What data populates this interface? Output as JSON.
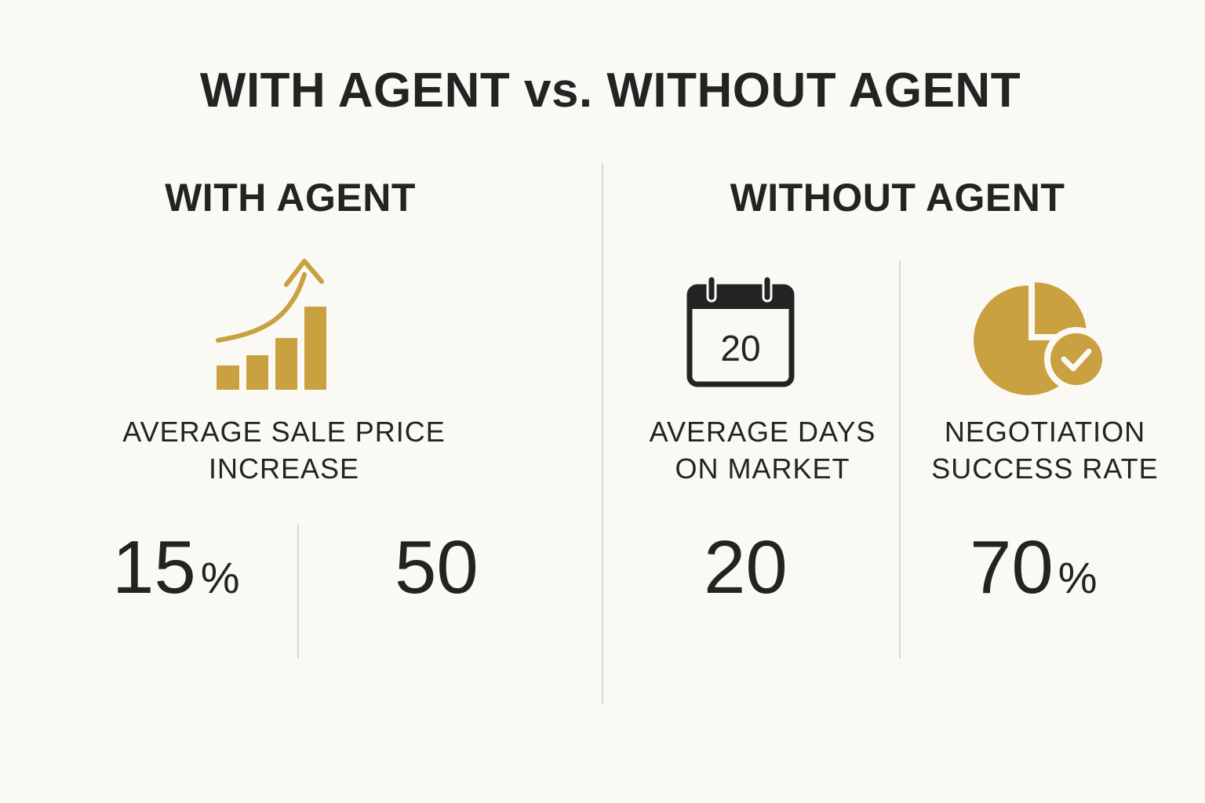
{
  "title": "WITH AGENT vs. WITHOUT AGENT",
  "with_agent": {
    "heading": "WITH AGENT",
    "metric": {
      "label_line1": "AVERAGE SALE PRICE",
      "label_line2": "INCREASE",
      "value1_number": "15",
      "value1_unit": "%",
      "value2_number": "50",
      "icon": "bar-growth-arrow-icon"
    }
  },
  "without_agent": {
    "heading": "WITHOUT AGENT",
    "metrics": [
      {
        "label_line1": "AVERAGE DAYS",
        "label_line2": "ON MARKET",
        "value_number": "20",
        "value_unit": "",
        "icon": "calendar-icon",
        "icon_text": "20"
      },
      {
        "label_line1": "NEGOTIATION",
        "label_line2": "SUCCESS RATE",
        "value_number": "70",
        "value_unit": "%",
        "icon": "pie-check-icon"
      }
    ]
  },
  "colors": {
    "background": "#faf9f4",
    "text": "#232323",
    "accent_gold": "#c9a140",
    "divider": "#d9d8d2"
  }
}
